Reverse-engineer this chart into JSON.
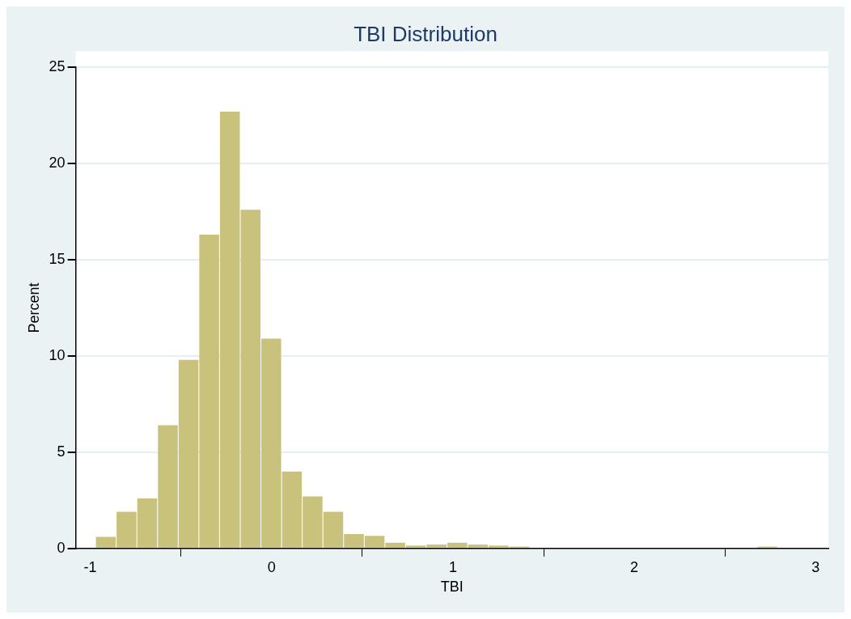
{
  "chart_data": {
    "type": "histogram",
    "title": "TBI Distribution",
    "xlabel": "TBI",
    "ylabel": "Percent",
    "bins": [
      -0.971,
      -0.857,
      -0.743,
      -0.629,
      -0.515,
      -0.401,
      -0.287,
      -0.173,
      -0.059,
      0.055,
      0.169,
      0.283,
      0.397,
      0.511,
      0.625,
      0.739,
      0.853,
      0.967,
      1.081,
      1.195,
      1.309,
      1.423,
      1.537,
      1.651,
      1.765,
      1.879,
      1.993,
      2.107,
      2.221,
      2.335,
      2.449,
      2.563,
      2.677,
      2.791
    ],
    "values": [
      0.6,
      1.9,
      2.6,
      6.4,
      9.8,
      16.3,
      22.7,
      17.6,
      10.9,
      4.0,
      2.7,
      1.9,
      0.75,
      0.65,
      0.3,
      0.15,
      0.2,
      0.3,
      0.2,
      0.15,
      0.1,
      0,
      0,
      0,
      0,
      0,
      0,
      0,
      0,
      0,
      0,
      0,
      0.1
    ],
    "color": "#c9c27c",
    "xlim": [
      -1.08,
      3.07
    ],
    "xticks": [
      -1,
      0,
      1,
      2,
      3
    ],
    "ylim": [
      0,
      25
    ],
    "yticks": [
      0,
      5,
      10,
      15,
      20,
      25
    ],
    "grid": "y",
    "legend": false
  }
}
